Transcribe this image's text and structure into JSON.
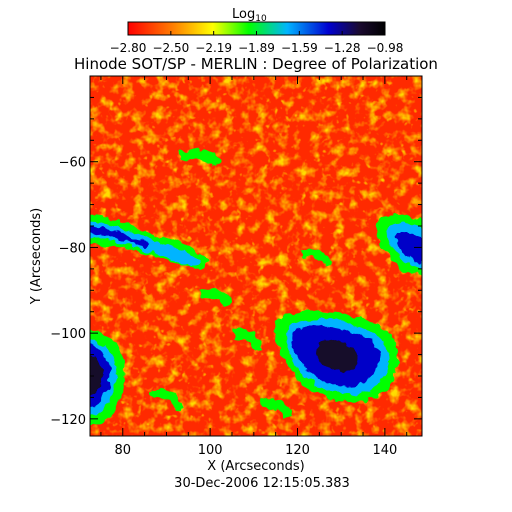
{
  "colorbar": {
    "label": "Log",
    "label_subscript": "10",
    "tick_labels": [
      "-2.80",
      "-2.50",
      "-2.19",
      "-1.89",
      "-1.59",
      "-1.28",
      "-0.98"
    ],
    "range": [
      -2.8,
      -0.98
    ],
    "stops": [
      "#ff0000",
      "#ff7a00",
      "#ffff00",
      "#00ff00",
      "#00b4ff",
      "#0000d0",
      "#1a0a30",
      "#000000"
    ]
  },
  "title": "Hinode SOT/SP - MERLIN : Degree of Polarization",
  "x_axis": {
    "label": "X (Arcseconds)",
    "range": [
      72.5,
      148.5
    ],
    "ticks": [
      80,
      100,
      120,
      140
    ],
    "tick_labels": [
      "80",
      "100",
      "120",
      "140"
    ]
  },
  "y_axis": {
    "label": "Y (Arcseconds)",
    "range": [
      -124,
      -40
    ],
    "ticks": [
      -60,
      -80,
      -100,
      -120
    ],
    "tick_labels": [
      "-60",
      "-80",
      "-100",
      "-120"
    ]
  },
  "timestamp": "30-Dec-2006 12:15:05.383",
  "image": {
    "description_colors": {
      "background": "#ff2200",
      "granule_bright": "#ffa000",
      "network": "#00ff00",
      "strong_field": "#0000c8",
      "core": "#000000"
    }
  }
}
